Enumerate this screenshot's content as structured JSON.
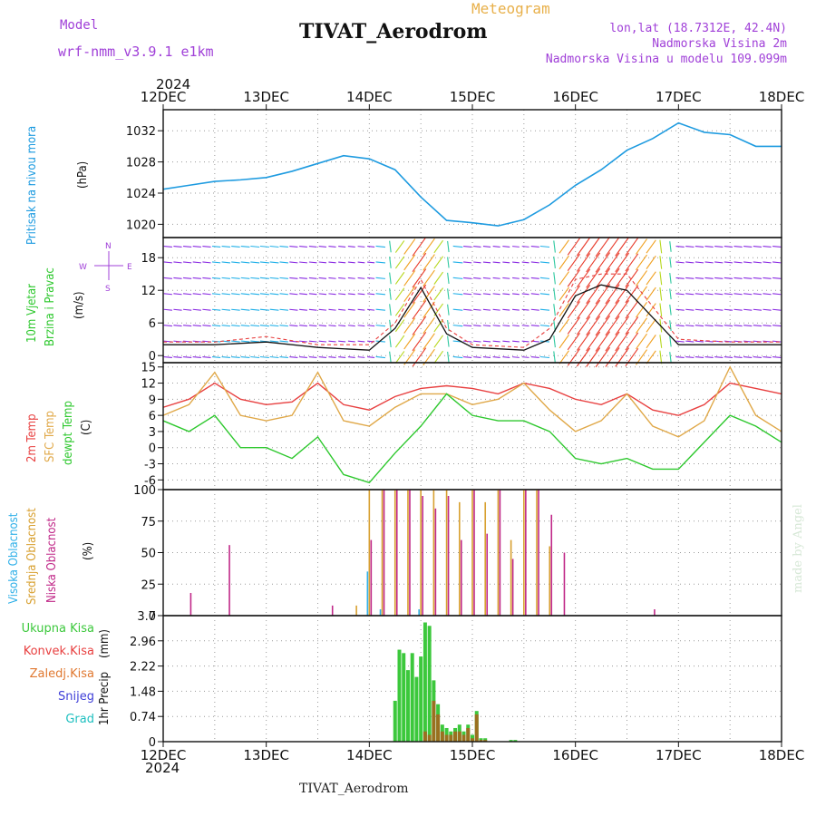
{
  "header": {
    "model_label": "Model",
    "model_value": "wrf-nmm_v3.9.1 e1km",
    "program": "Meteogram",
    "title": "TIVAT_Aerodrom",
    "lonlat": "lon,lat (18.7312E, 42.4N)",
    "elevation": "Nadmorska Visina 2m",
    "model_elevation": "Nadmorska Visina u modelu 109.099m",
    "footer_title": "TIVAT_Aerodrom",
    "credit": "made by Angel"
  },
  "colors": {
    "pressure": "#1e9be0",
    "t2m": "#e84040",
    "sfc": "#e0a848",
    "dew": "#2ec82e",
    "high_cloud": "#30b0e8",
    "mid_cloud": "#d8a030",
    "low_cloud": "#c02888",
    "total_precip": "#3cc83c",
    "conv_precip": "#e84040",
    "frz_precip": "#e07830",
    "snow": "#4040d8",
    "hail": "#20c0c0",
    "wind_low": "#8a2be2"
  },
  "time_axis": {
    "year": "2024",
    "ticks": [
      "12DEC",
      "13DEC",
      "14DEC",
      "15DEC",
      "16DEC",
      "17DEC",
      "18DEC"
    ],
    "start": "2024-12-12T00:00",
    "end": "2024-12-18T00:00"
  },
  "chart_data": [
    {
      "type": "line",
      "panel": "pressure",
      "ylabel_name": "Pritisak na nivou mora",
      "ylabel_unit": "(hPa)",
      "yticks": [
        1020,
        1024,
        1028,
        1032
      ],
      "ylim": [
        1018.3,
        1034.7
      ],
      "x": [
        "2024-12-12T00:00",
        "2024-12-12T06:00",
        "2024-12-12T12:00",
        "2024-12-12T18:00",
        "2024-12-13T00:00",
        "2024-12-13T06:00",
        "2024-12-13T12:00",
        "2024-12-13T18:00",
        "2024-12-14T00:00",
        "2024-12-14T06:00",
        "2024-12-14T12:00",
        "2024-12-14T18:00",
        "2024-12-15T00:00",
        "2024-12-15T06:00",
        "2024-12-15T12:00",
        "2024-12-15T18:00",
        "2024-12-16T00:00",
        "2024-12-16T06:00",
        "2024-12-16T12:00",
        "2024-12-16T18:00",
        "2024-12-17T00:00",
        "2024-12-17T06:00",
        "2024-12-17T12:00",
        "2024-12-17T18:00",
        "2024-12-18T00:00"
      ],
      "y": [
        1024.5,
        1025.0,
        1025.5,
        1025.7,
        1026.0,
        1026.8,
        1027.8,
        1028.8,
        1028.4,
        1027.0,
        1023.5,
        1020.5,
        1020.2,
        1019.8,
        1020.6,
        1022.5,
        1025.0,
        1027.0,
        1029.5,
        1031.0,
        1033.0,
        1031.8,
        1031.5,
        1030.0,
        1030.0
      ]
    },
    {
      "type": "vector",
      "panel": "wind",
      "ylabel_name": "10m Vjetar",
      "ylabel_name2": "Brzina i Pravac",
      "ylabel_unit": "(m/s)",
      "compass": [
        "N",
        "E",
        "S",
        "W"
      ],
      "yticks": [
        0,
        6,
        12,
        18
      ],
      "ylim": [
        -1.3,
        21.7
      ],
      "x": [
        "2024-12-12T00:00",
        "2024-12-12T12:00",
        "2024-12-13T00:00",
        "2024-12-13T12:00",
        "2024-12-14T00:00",
        "2024-12-14T06:00",
        "2024-12-14T12:00",
        "2024-12-14T18:00",
        "2024-12-15T00:00",
        "2024-12-15T12:00",
        "2024-12-15T18:00",
        "2024-12-16T00:00",
        "2024-12-16T06:00",
        "2024-12-16T12:00",
        "2024-12-16T18:00",
        "2024-12-17T00:00",
        "2024-12-17T12:00",
        "2024-12-18T00:00"
      ],
      "speed": [
        2,
        2,
        2.5,
        1.5,
        1,
        5,
        12.5,
        4,
        1.5,
        1,
        3,
        11,
        13,
        12,
        7,
        2,
        2,
        2
      ],
      "gusts": [
        2.5,
        2.5,
        3.5,
        2,
        2,
        6,
        14,
        5,
        2,
        1.5,
        5,
        14,
        15,
        15,
        9,
        3,
        2.5,
        2.5
      ]
    },
    {
      "type": "line",
      "panel": "temperature",
      "ylabel_names": [
        "2m Temp",
        "SFC Temp",
        "dewpt Temp"
      ],
      "ylabel_unit": "(C)",
      "yticks": [
        -6,
        -3,
        0,
        3,
        6,
        9,
        12,
        15
      ],
      "ylim": [
        -7.8,
        15.8
      ],
      "x": [
        "2024-12-12T00:00",
        "2024-12-12T06:00",
        "2024-12-12T12:00",
        "2024-12-12T18:00",
        "2024-12-13T00:00",
        "2024-12-13T06:00",
        "2024-12-13T12:00",
        "2024-12-13T18:00",
        "2024-12-14T00:00",
        "2024-12-14T06:00",
        "2024-12-14T12:00",
        "2024-12-14T18:00",
        "2024-12-15T00:00",
        "2024-12-15T06:00",
        "2024-12-15T12:00",
        "2024-12-15T18:00",
        "2024-12-16T00:00",
        "2024-12-16T06:00",
        "2024-12-16T12:00",
        "2024-12-16T18:00",
        "2024-12-17T00:00",
        "2024-12-17T06:00",
        "2024-12-17T12:00",
        "2024-12-17T18:00",
        "2024-12-18T00:00"
      ],
      "series": [
        {
          "name": "2m Temp",
          "values": [
            7.5,
            9,
            12,
            9,
            8,
            8.5,
            12,
            8,
            7,
            9.5,
            11,
            11.5,
            11,
            10,
            12,
            11,
            9,
            8,
            10,
            7,
            6,
            8,
            12,
            11,
            10
          ]
        },
        {
          "name": "SFC Temp",
          "values": [
            6,
            8,
            14,
            6,
            5,
            6,
            14,
            5,
            4,
            7.5,
            10,
            10,
            8,
            9,
            12,
            7,
            3,
            5,
            10,
            4,
            2,
            5,
            15,
            6,
            3
          ]
        },
        {
          "name": "dewpt Temp",
          "values": [
            5,
            3,
            6,
            0,
            0,
            -2,
            2,
            -5,
            -6.5,
            -1,
            4,
            10,
            6,
            5,
            5,
            3,
            -2,
            -3,
            -2,
            -4,
            -4,
            1,
            6,
            4,
            1
          ]
        }
      ]
    },
    {
      "type": "bar",
      "panel": "cloud",
      "ylabel_names": [
        "Visoka Oblacnost",
        "Srednja Oblacnost",
        "Niska Oblacnost"
      ],
      "ylabel_unit": "(%)",
      "yticks": [
        0,
        25,
        50,
        75,
        100
      ],
      "ylim": [
        0,
        100
      ],
      "x": [
        "2024-12-12T06:00",
        "2024-12-12T15:00",
        "2024-12-13T15:00",
        "2024-12-13T21:00",
        "2024-12-14T00:00",
        "2024-12-14T03:00",
        "2024-12-14T06:00",
        "2024-12-14T09:00",
        "2024-12-14T12:00",
        "2024-12-14T15:00",
        "2024-12-14T18:00",
        "2024-12-14T21:00",
        "2024-12-15T00:00",
        "2024-12-15T03:00",
        "2024-12-15T06:00",
        "2024-12-15T09:00",
        "2024-12-15T12:00",
        "2024-12-15T15:00",
        "2024-12-15T18:00",
        "2024-12-15T21:00",
        "2024-12-16T18:00"
      ],
      "series": [
        {
          "name": "Visoka Oblacnost",
          "values": [
            0,
            0,
            0,
            0,
            35,
            5,
            0,
            0,
            5,
            0,
            0,
            0,
            0,
            0,
            0,
            0,
            0,
            0,
            0,
            0,
            0
          ]
        },
        {
          "name": "Srednja Oblacnost",
          "values": [
            0,
            0,
            0,
            8,
            100,
            100,
            100,
            100,
            100,
            100,
            100,
            90,
            100,
            90,
            100,
            60,
            100,
            100,
            55,
            0,
            0
          ]
        },
        {
          "name": "Niska Oblacnost",
          "values": [
            18,
            56,
            8,
            0,
            60,
            100,
            100,
            100,
            95,
            85,
            95,
            60,
            100,
            65,
            100,
            45,
            100,
            100,
            80,
            50,
            5
          ]
        }
      ]
    },
    {
      "type": "bar",
      "panel": "precip",
      "legend": [
        "Ukupna Kisa",
        "Konvek.Kisa",
        "Zaledj.Kisa",
        "Snijeg",
        "Grad"
      ],
      "ylabel_name": "1hr Precip",
      "ylabel_unit": "(mm)",
      "yticks": [
        0,
        0.74,
        1.48,
        2.22,
        2.96,
        3.7
      ],
      "ylim": [
        0,
        3.7
      ],
      "x": [
        "2024-12-14T06:00",
        "2024-12-14T07:00",
        "2024-12-14T08:00",
        "2024-12-14T09:00",
        "2024-12-14T10:00",
        "2024-12-14T11:00",
        "2024-12-14T12:00",
        "2024-12-14T13:00",
        "2024-12-14T14:00",
        "2024-12-14T15:00",
        "2024-12-14T16:00",
        "2024-12-14T17:00",
        "2024-12-14T18:00",
        "2024-12-14T19:00",
        "2024-12-14T20:00",
        "2024-12-14T21:00",
        "2024-12-14T22:00",
        "2024-12-14T23:00",
        "2024-12-15T00:00",
        "2024-12-15T01:00",
        "2024-12-15T02:00",
        "2024-12-15T03:00",
        "2024-12-15T09:00",
        "2024-12-15T10:00"
      ],
      "series": [
        {
          "name": "Ukupna Kisa",
          "values": [
            1.2,
            2.7,
            2.6,
            2.1,
            2.6,
            1.9,
            2.5,
            3.5,
            3.4,
            1.8,
            1.1,
            0.5,
            0.4,
            0.3,
            0.4,
            0.5,
            0.3,
            0.5,
            0.2,
            0.9,
            0.1,
            0.1,
            0.05,
            0.05
          ]
        },
        {
          "name": "Konvek.Kisa",
          "values": [
            0,
            0,
            0,
            0,
            0,
            0,
            0,
            0.3,
            0.2,
            1.2,
            0.8,
            0.3,
            0.2,
            0.2,
            0.3,
            0.3,
            0.2,
            0.4,
            0.1,
            0.8,
            0.05,
            0.05,
            0,
            0
          ]
        }
      ]
    }
  ]
}
